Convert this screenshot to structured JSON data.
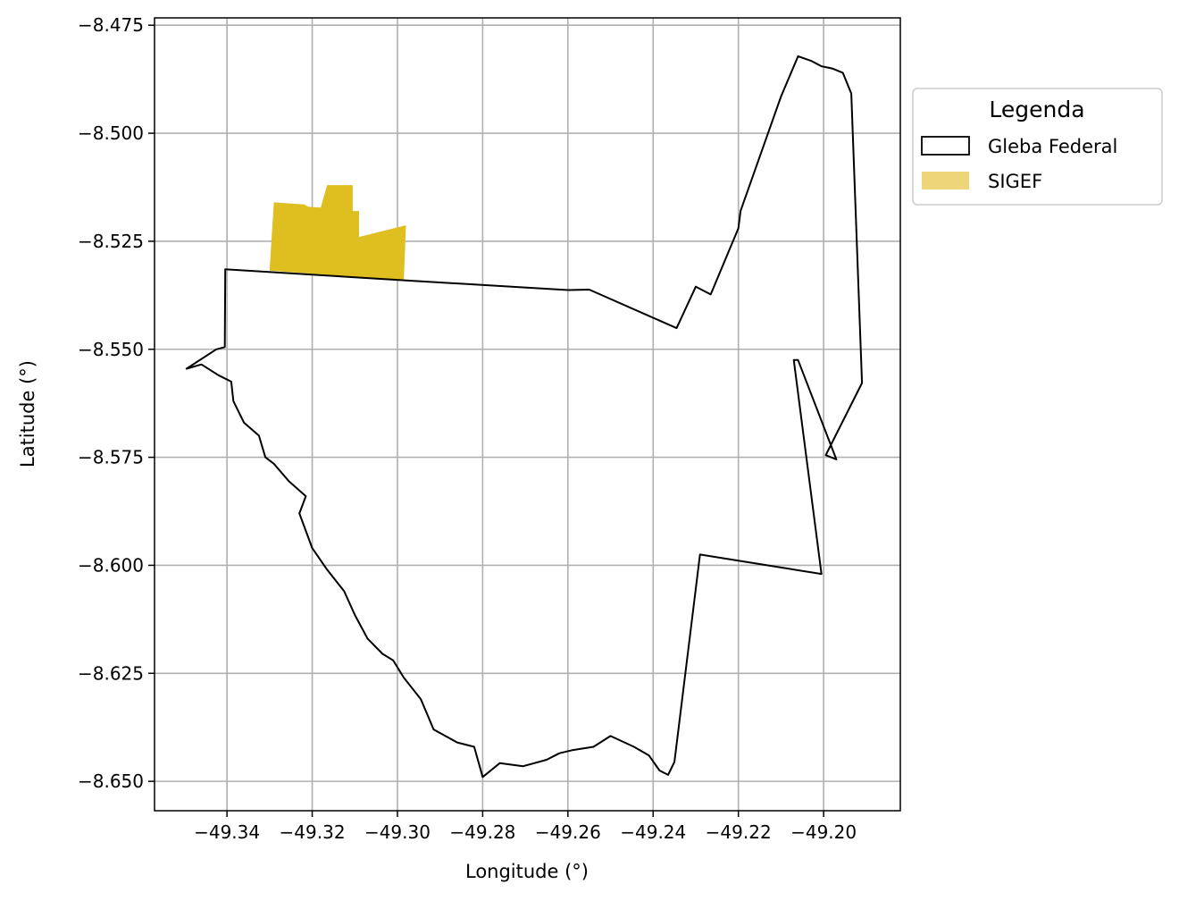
{
  "chart_data": {
    "type": "map",
    "xlabel": "Longitude (°)",
    "ylabel": "Latitude (°)",
    "xlim": [
      -49.357,
      -49.182
    ],
    "ylim": [
      -8.6568,
      -8.4733
    ],
    "grid": true,
    "x_ticks": [
      {
        "value": -49.34,
        "label": "−49.34"
      },
      {
        "value": -49.32,
        "label": "−49.32"
      },
      {
        "value": -49.3,
        "label": "−49.30"
      },
      {
        "value": -49.28,
        "label": "−49.28"
      },
      {
        "value": -49.26,
        "label": "−49.26"
      },
      {
        "value": -49.24,
        "label": "−49.24"
      },
      {
        "value": -49.22,
        "label": "−49.22"
      },
      {
        "value": -49.2,
        "label": "−49.20"
      }
    ],
    "y_ticks": [
      {
        "value": -8.475,
        "label": "−8.475"
      },
      {
        "value": -8.5,
        "label": "−8.500"
      },
      {
        "value": -8.525,
        "label": "−8.525"
      },
      {
        "value": -8.55,
        "label": "−8.550"
      },
      {
        "value": -8.575,
        "label": "−8.575"
      },
      {
        "value": -8.6,
        "label": "−8.600"
      },
      {
        "value": -8.625,
        "label": "−8.625"
      },
      {
        "value": -8.65,
        "label": "−8.650"
      }
    ],
    "legend": {
      "title": "Legenda",
      "placement": "outside-right-top",
      "entries": [
        {
          "label": "Gleba Federal",
          "style": "outline",
          "color": "#000000"
        },
        {
          "label": "SIGEF",
          "style": "fill",
          "color": "#eed57a"
        }
      ]
    },
    "layers": [
      {
        "name": "Gleba Federal",
        "stroke": "#000000",
        "fill": "none",
        "coordinates": [
          [
            -49.3404,
            -8.5315
          ],
          [
            -49.2975,
            -8.5341
          ],
          [
            -49.26,
            -8.5363
          ],
          [
            -49.255,
            -8.5362
          ],
          [
            -49.2345,
            -8.5451
          ],
          [
            -49.23,
            -8.5355
          ],
          [
            -49.2265,
            -8.5373
          ],
          [
            -49.22,
            -8.522
          ],
          [
            -49.2195,
            -8.518
          ],
          [
            -49.21,
            -8.4915
          ],
          [
            -49.206,
            -8.4822
          ],
          [
            -49.203,
            -8.4832
          ],
          [
            -49.2005,
            -8.4845
          ],
          [
            -49.198,
            -8.485
          ],
          [
            -49.1955,
            -8.486
          ],
          [
            -49.1935,
            -8.4908
          ],
          [
            -49.191,
            -8.5578
          ],
          [
            -49.1995,
            -8.5745
          ],
          [
            -49.197,
            -8.5755
          ],
          [
            -49.206,
            -8.5525
          ],
          [
            -49.207,
            -8.5525
          ],
          [
            -49.2005,
            -8.602
          ],
          [
            -49.229,
            -8.5975
          ],
          [
            -49.235,
            -8.6455
          ],
          [
            -49.2365,
            -8.6485
          ],
          [
            -49.2385,
            -8.6475
          ],
          [
            -49.241,
            -8.644
          ],
          [
            -49.2445,
            -8.642
          ],
          [
            -49.25,
            -8.6395
          ],
          [
            -49.254,
            -8.642
          ],
          [
            -49.259,
            -8.6428
          ],
          [
            -49.262,
            -8.6435
          ],
          [
            -49.265,
            -8.645
          ],
          [
            -49.2705,
            -8.6465
          ],
          [
            -49.276,
            -8.6458
          ],
          [
            -49.28,
            -8.649
          ],
          [
            -49.282,
            -8.642
          ],
          [
            -49.286,
            -8.641
          ],
          [
            -49.2915,
            -8.638
          ],
          [
            -49.2945,
            -8.631
          ],
          [
            -49.2985,
            -8.626
          ],
          [
            -49.301,
            -8.622
          ],
          [
            -49.3035,
            -8.6205
          ],
          [
            -49.307,
            -8.617
          ],
          [
            -49.31,
            -8.6115
          ],
          [
            -49.3125,
            -8.606
          ],
          [
            -49.3165,
            -8.601
          ],
          [
            -49.32,
            -8.596
          ],
          [
            -49.323,
            -8.588
          ],
          [
            -49.3215,
            -8.584
          ],
          [
            -49.3255,
            -8.5805
          ],
          [
            -49.329,
            -8.5765
          ],
          [
            -49.331,
            -8.575
          ],
          [
            -49.3325,
            -8.57
          ],
          [
            -49.336,
            -8.567
          ],
          [
            -49.3385,
            -8.562
          ],
          [
            -49.339,
            -8.5575
          ],
          [
            -49.342,
            -8.556
          ],
          [
            -49.346,
            -8.5535
          ],
          [
            -49.3495,
            -8.5545
          ],
          [
            -49.3425,
            -8.55
          ],
          [
            -49.3405,
            -8.5495
          ],
          [
            -49.3404,
            -8.5315
          ]
        ]
      },
      {
        "name": "SIGEF",
        "stroke": "none",
        "fill": "#dfbe20",
        "coordinates": [
          [
            -49.33,
            -8.5318
          ],
          [
            -49.329,
            -8.516
          ],
          [
            -49.3218,
            -8.5165
          ],
          [
            -49.321,
            -8.517
          ],
          [
            -49.318,
            -8.5172
          ],
          [
            -49.3165,
            -8.512
          ],
          [
            -49.3105,
            -8.512
          ],
          [
            -49.3105,
            -8.518
          ],
          [
            -49.309,
            -8.518
          ],
          [
            -49.309,
            -8.524
          ],
          [
            -49.298,
            -8.5213
          ],
          [
            -49.2985,
            -8.534
          ],
          [
            -49.33,
            -8.5318
          ]
        ]
      }
    ]
  }
}
